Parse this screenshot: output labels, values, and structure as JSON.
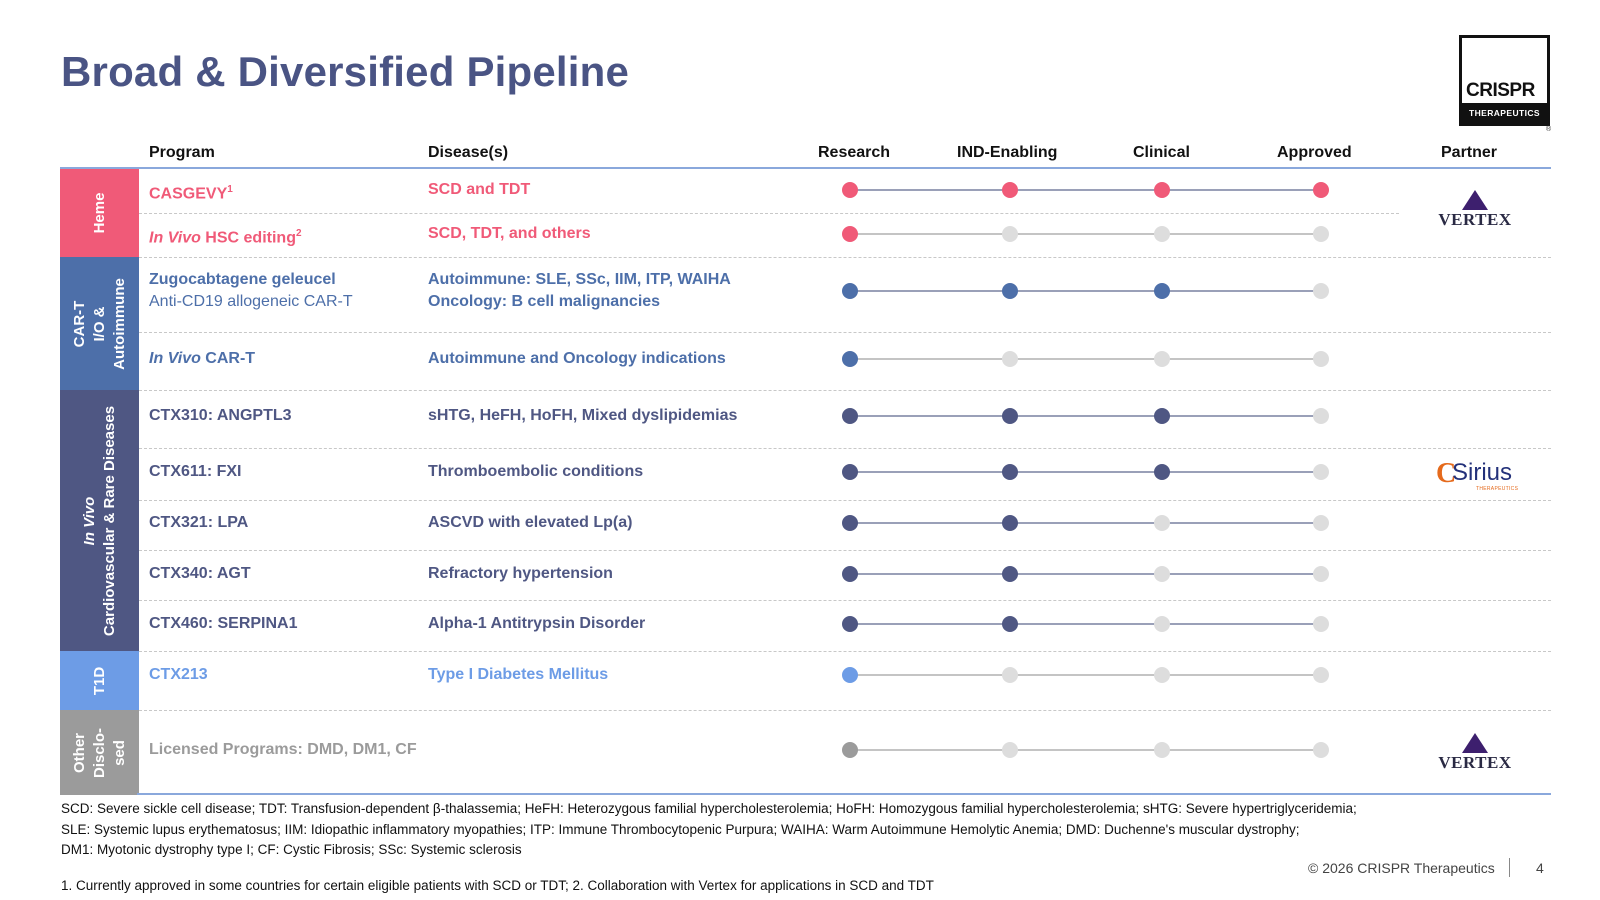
{
  "title": "Broad & Diversified Pipeline",
  "logo": {
    "wordmark": "CRISPR",
    "subtitle": "THERAPEUTICS",
    "registered": "®"
  },
  "headers": {
    "program": "Program",
    "disease": "Disease(s)",
    "stages": [
      "Research",
      "IND-Enabling",
      "Clinical",
      "Approved"
    ],
    "partner": "Partner"
  },
  "categories": [
    {
      "lines": [
        "Heme"
      ],
      "color": "#f05a78"
    },
    {
      "lines": [
        "CAR-T",
        "I/O &",
        "Autoimmune"
      ],
      "color": "#4d6fa9"
    },
    {
      "lines": [
        "In Vivo",
        "Cardiovascular & Rare Diseases"
      ],
      "color": "#4f5783"
    },
    {
      "lines": [
        "T1D"
      ],
      "color": "#6d9ce6"
    },
    {
      "lines": [
        "Other",
        "Disclo-",
        "sed"
      ],
      "color": "#9b9b9b"
    }
  ],
  "programs": [
    {
      "category": "Heme",
      "italic": "",
      "name": "CASGEVY",
      "sup": "1",
      "sub": "",
      "disease": [
        "SCD and TDT"
      ],
      "stage": 4,
      "color": "#f05a78"
    },
    {
      "category": "Heme",
      "italic": "In Vivo",
      "name": " HSC editing",
      "sup": "2",
      "sub": "",
      "disease": [
        "SCD, TDT, and others"
      ],
      "stage": 1,
      "color": "#f05a78"
    },
    {
      "category": "CAR-T I/O & Autoimmune",
      "italic": "",
      "name": "Zugocabtagene geleucel",
      "sup": "",
      "sub": "Anti-CD19 allogeneic CAR-T",
      "disease": [
        "Autoimmune: SLE, SSc, IIM, ITP, WAIHA",
        "Oncology: B cell malignancies"
      ],
      "stage": 3,
      "color": "#4d6fa9"
    },
    {
      "category": "CAR-T I/O & Autoimmune",
      "italic": "In Vivo",
      "name": " CAR-T",
      "sup": "",
      "sub": "",
      "disease": [
        "Autoimmune and Oncology indications"
      ],
      "stage": 1,
      "color": "#4d6fa9"
    },
    {
      "category": "In Vivo Cardiovascular & Rare Diseases",
      "italic": "",
      "name": "CTX310: ANGPTL3",
      "sup": "",
      "sub": "",
      "disease": [
        "sHTG, HeFH, HoFH, Mixed dyslipidemias"
      ],
      "stage": 3,
      "color": "#4f5783"
    },
    {
      "category": "In Vivo Cardiovascular & Rare Diseases",
      "italic": "",
      "name": "CTX611: FXI",
      "sup": "",
      "sub": "",
      "disease": [
        "Thromboembolic conditions"
      ],
      "stage": 3,
      "color": "#4f5783"
    },
    {
      "category": "In Vivo Cardiovascular & Rare Diseases",
      "italic": "",
      "name": "CTX321: LPA",
      "sup": "",
      "sub": "",
      "disease": [
        "ASCVD with elevated Lp(a)"
      ],
      "stage": 2,
      "color": "#4f5783"
    },
    {
      "category": "In Vivo Cardiovascular & Rare Diseases",
      "italic": "",
      "name": "CTX340: AGT",
      "sup": "",
      "sub": "",
      "disease": [
        "Refractory hypertension"
      ],
      "stage": 2,
      "color": "#4f5783"
    },
    {
      "category": "In Vivo Cardiovascular & Rare Diseases",
      "italic": "",
      "name": "CTX460: SERPINA1",
      "sup": "",
      "sub": "",
      "disease": [
        "Alpha-1 Antitrypsin Disorder"
      ],
      "stage": 2,
      "color": "#4f5783"
    },
    {
      "category": "T1D",
      "italic": "",
      "name": "CTX213",
      "sup": "",
      "sub": "",
      "disease": [
        "Type I Diabetes Mellitus"
      ],
      "stage": 1,
      "color": "#6d9ce6"
    },
    {
      "category": "Other Disclosed",
      "italic": "",
      "name": "Licensed Programs: DMD, DM1, CF",
      "sup": "",
      "sub": "",
      "disease": [
        ""
      ],
      "stage": 1,
      "color": "#9b9b9b"
    }
  ],
  "dot_inactive_color": "#dddddd",
  "partners": [
    {
      "name": "VERTEX",
      "rows": "CASGEVY, In Vivo HSC editing"
    },
    {
      "name": "Sirius",
      "tagline": "THERAPEUTICS",
      "rows": "CTX611: FXI"
    },
    {
      "name": "VERTEX",
      "rows": "Licensed Programs"
    }
  ],
  "footnotes": [
    "SCD: Severe sickle cell disease; TDT: Transfusion-dependent β-thalassemia; HeFH: Heterozygous familial hypercholesterolemia; HoFH: Homozygous familial hypercholesterolemia; sHTG: Severe hypertriglyceridemia;",
    "SLE: Systemic lupus erythematosus; IIM: Idiopathic inflammatory myopathies; ITP: Immune Thrombocytopenic Purpura; WAIHA: Warm Autoimmune Hemolytic Anemia; DMD: Duchenne's muscular dystrophy;",
    "DM1: Myotonic dystrophy type I; CF: Cystic Fibrosis; SSc: Systemic sclerosis"
  ],
  "reference_note": "1. Currently approved in some countries for certain eligible patients with SCD or TDT; 2. Collaboration with Vertex for applications in SCD and TDT",
  "copyright": "© 2026 CRISPR Therapeutics",
  "page_number": "4"
}
